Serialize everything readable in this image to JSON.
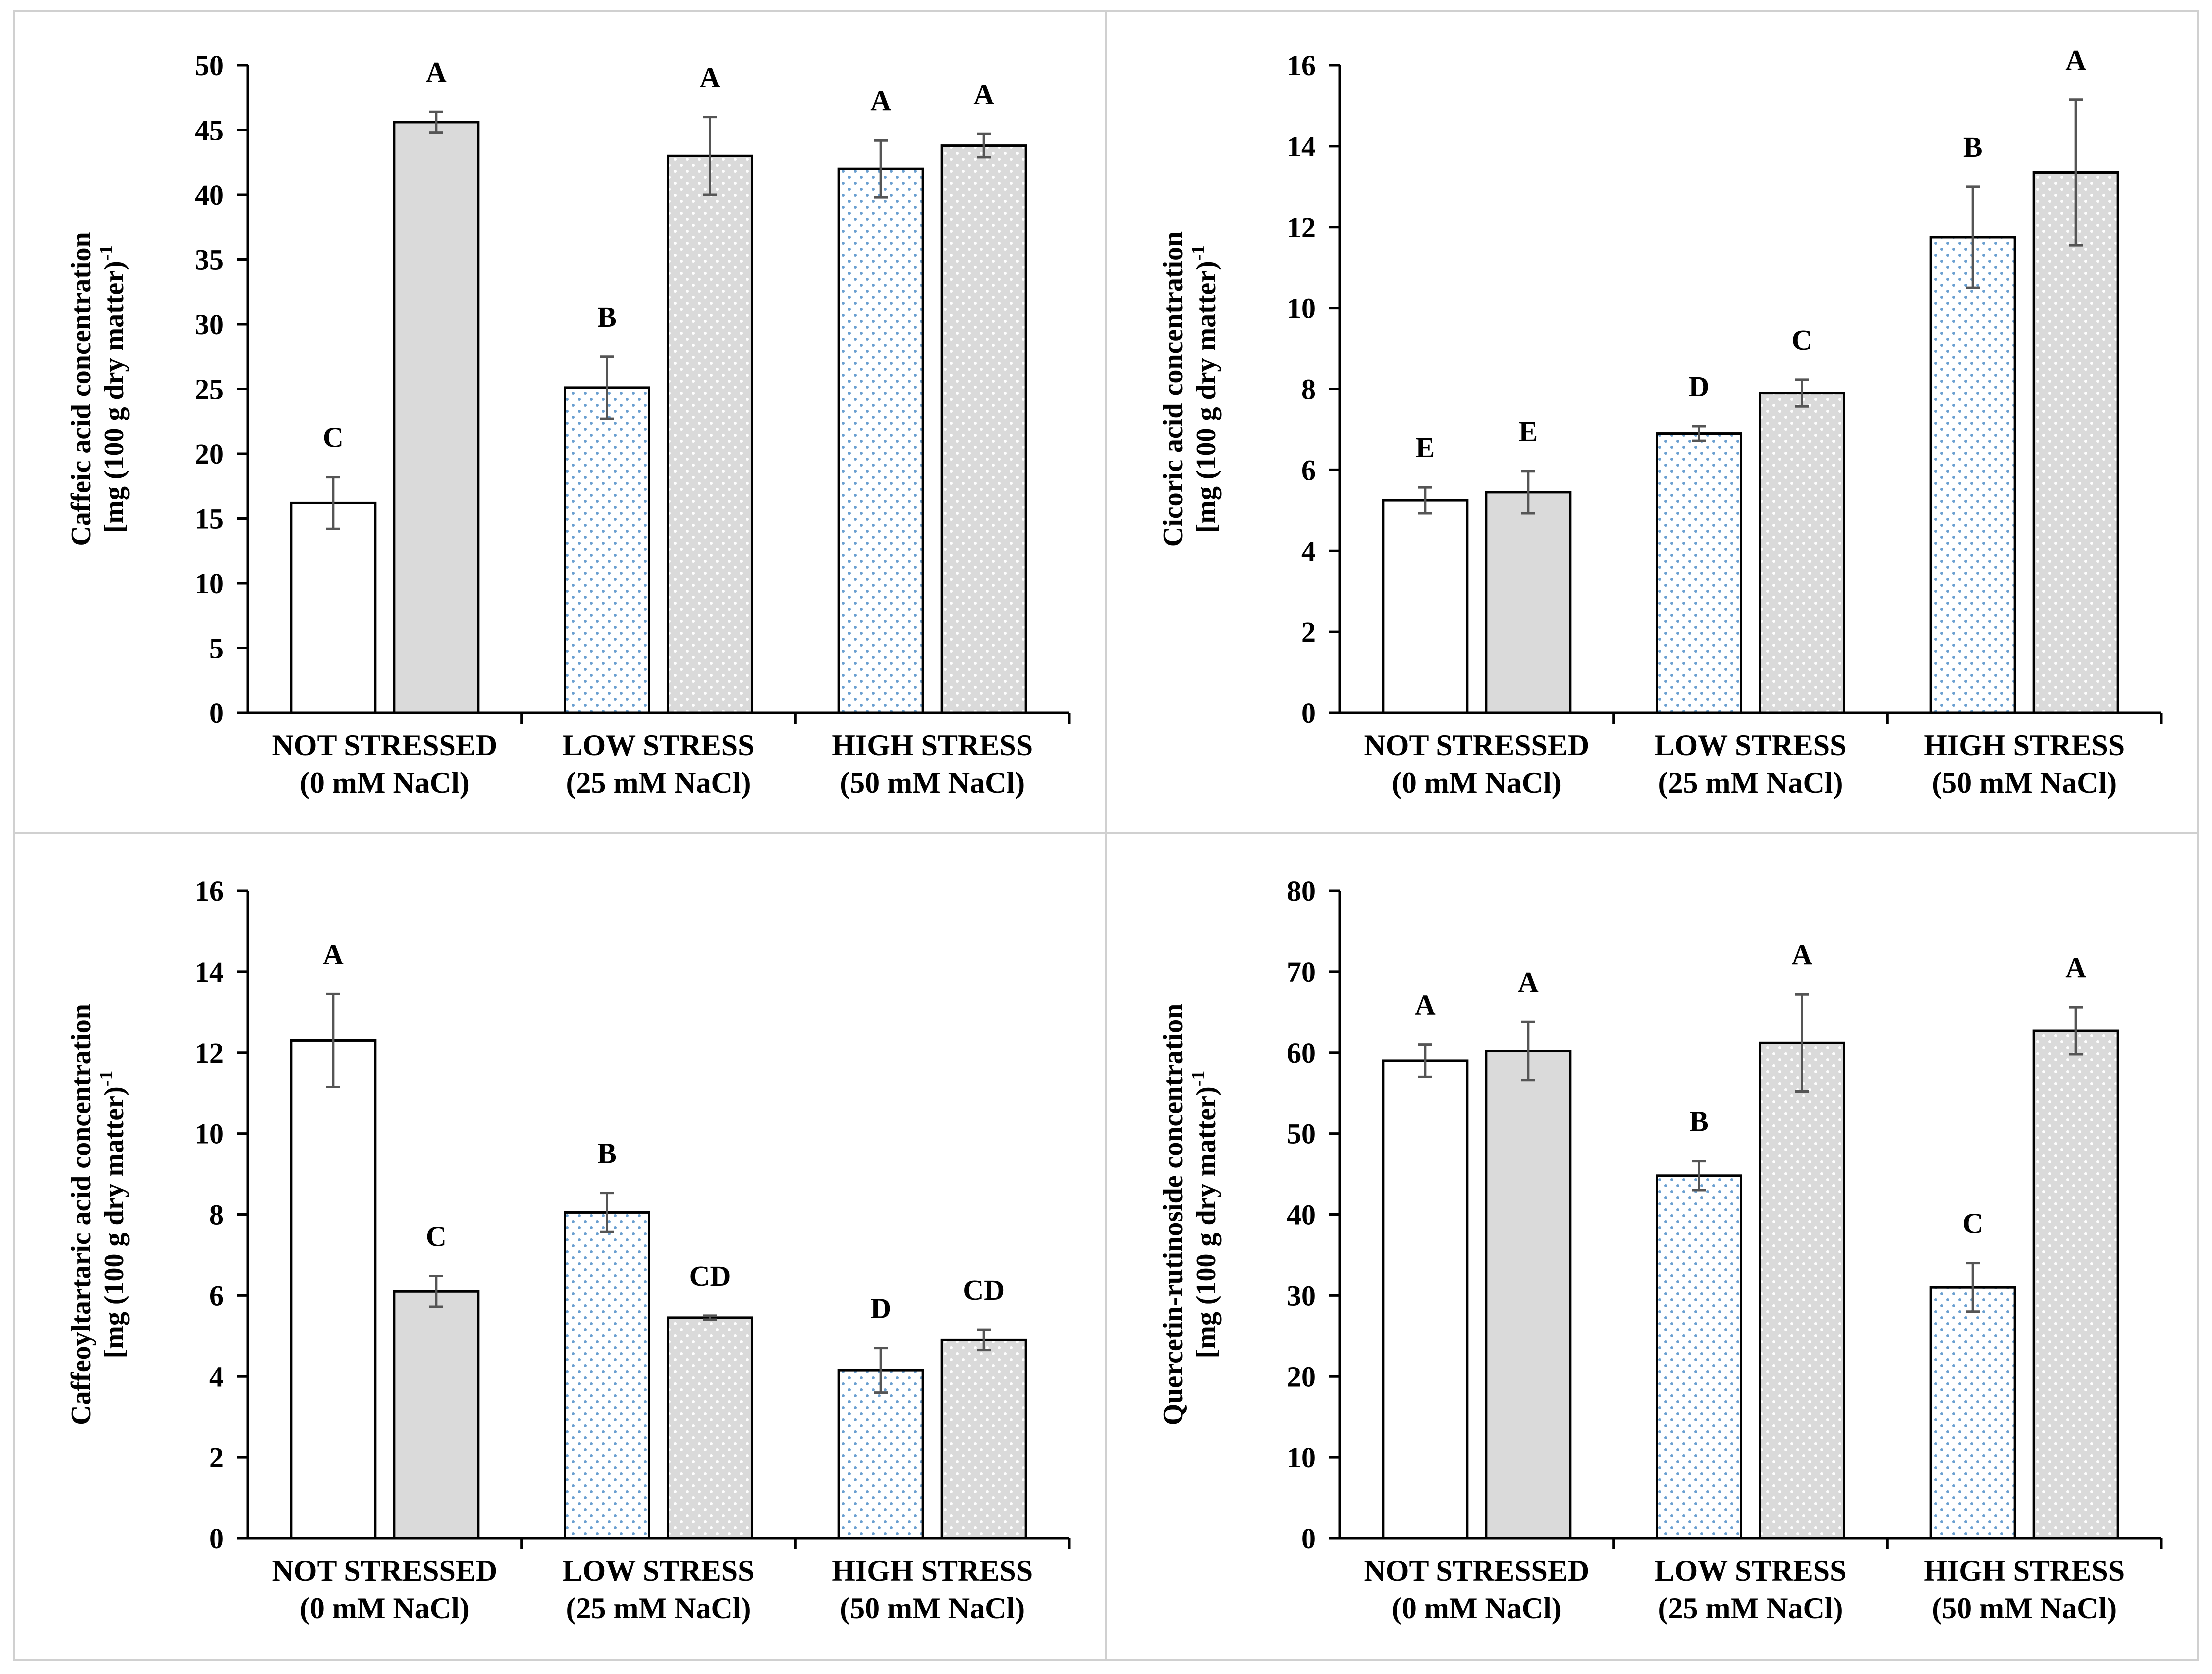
{
  "chart_data": [
    {
      "type": "bar",
      "categories": [
        "NOT STRESSED",
        "LOW STRESS",
        "HIGH STRESS"
      ],
      "category_sublabels": [
        "(0 mM NaCl)",
        "(25 mM NaCl)",
        "(50 mM NaCl)"
      ],
      "ylabel_line1": "Caffeic acid concentration",
      "ylabel_line2": "[mg (100 g dry matter)",
      "ylabel_sup": "-1",
      "ylim": [
        0,
        50
      ],
      "ytick_step": 5,
      "yticks": [
        "0",
        "5",
        "10",
        "15",
        "20",
        "25",
        "30",
        "35",
        "40",
        "45",
        "50"
      ],
      "series": [
        {
          "values": [
            16.2,
            25.1,
            42.0
          ],
          "errors": [
            2.0,
            2.4,
            2.2
          ],
          "labels": [
            "C",
            "B",
            "A"
          ]
        },
        {
          "values": [
            45.6,
            43.0,
            43.8
          ],
          "errors": [
            0.8,
            3.0,
            0.9
          ],
          "labels": [
            "A",
            "A",
            "A"
          ]
        }
      ]
    },
    {
      "type": "bar",
      "categories": [
        "NOT STRESSED",
        "LOW STRESS",
        "HIGH STRESS"
      ],
      "category_sublabels": [
        "(0 mM NaCl)",
        "(25 mM NaCl)",
        "(50 mM NaCl)"
      ],
      "ylabel_line1": "Cicoric acid concentration",
      "ylabel_line2": "[mg (100 g dry matter)",
      "ylabel_sup": "-1",
      "ylim": [
        0,
        16
      ],
      "ytick_step": 2,
      "yticks": [
        "0",
        "2",
        "4",
        "6",
        "8",
        "10",
        "12",
        "14",
        "16"
      ],
      "series": [
        {
          "values": [
            5.25,
            6.9,
            11.75
          ],
          "errors": [
            0.32,
            0.18,
            1.25
          ],
          "labels": [
            "E",
            "D",
            "B"
          ]
        },
        {
          "values": [
            5.45,
            7.9,
            13.35
          ],
          "errors": [
            0.52,
            0.33,
            1.8
          ],
          "labels": [
            "E",
            "C",
            "A"
          ]
        }
      ]
    },
    {
      "type": "bar",
      "categories": [
        "NOT STRESSED",
        "LOW STRESS",
        "HIGH STRESS"
      ],
      "category_sublabels": [
        "(0 mM NaCl)",
        "(25 mM NaCl)",
        "(50 mM NaCl)"
      ],
      "ylabel_line1": "Caffeoyltartaric acid concentration",
      "ylabel_line2": "[mg (100 g dry matter)",
      "ylabel_sup": "-1",
      "ylim": [
        0,
        16
      ],
      "ytick_step": 2,
      "yticks": [
        "0",
        "2",
        "4",
        "6",
        "8",
        "10",
        "12",
        "14",
        "16"
      ],
      "series": [
        {
          "values": [
            12.3,
            8.05,
            4.15
          ],
          "errors": [
            1.15,
            0.48,
            0.55
          ],
          "labels": [
            "A",
            "B",
            "D"
          ]
        },
        {
          "values": [
            6.1,
            5.45,
            4.9
          ],
          "errors": [
            0.38,
            0.05,
            0.25
          ],
          "labels": [
            "C",
            "CD",
            "CD"
          ]
        }
      ]
    },
    {
      "type": "bar",
      "categories": [
        "NOT STRESSED",
        "LOW STRESS",
        "HIGH STRESS"
      ],
      "category_sublabels": [
        "(0 mM NaCl)",
        "(25 mM NaCl)",
        "(50 mM NaCl)"
      ],
      "ylabel_line1": "Quercetin-rutinoside concentration",
      "ylabel_line2": "[mg (100 g dry matter)",
      "ylabel_sup": "-1",
      "ylim": [
        0,
        80
      ],
      "ytick_step": 10,
      "yticks": [
        "0",
        "10",
        "20",
        "30",
        "40",
        "50",
        "60",
        "70",
        "80"
      ],
      "series": [
        {
          "values": [
            59.0,
            44.8,
            31.0
          ],
          "errors": [
            2.0,
            1.8,
            3.0
          ],
          "labels": [
            "A",
            "B",
            "C"
          ]
        },
        {
          "values": [
            60.2,
            61.2,
            62.7
          ],
          "errors": [
            3.6,
            6.0,
            2.9
          ],
          "labels": [
            "A",
            "A",
            "A"
          ]
        }
      ]
    }
  ]
}
